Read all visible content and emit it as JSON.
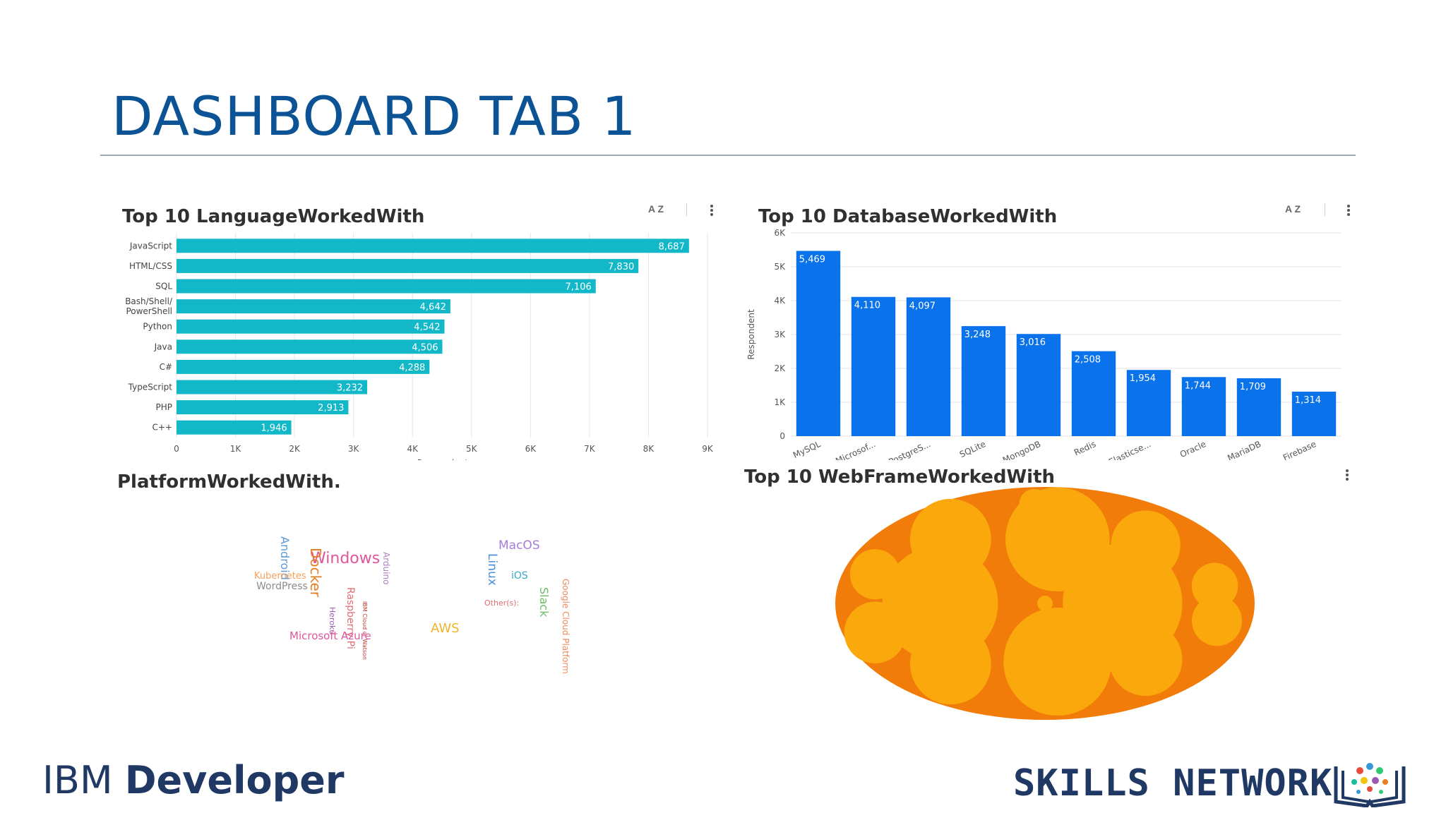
{
  "slide": {
    "title": "DASHBOARD TAB 1",
    "footer_left_thin": "IBM ",
    "footer_left_bold": "Developer",
    "footer_right": "SKILLS NETWORK"
  },
  "colors": {
    "title": "#0b5394",
    "language_bar": "#13b8c8",
    "database_bar": "#0a72ea",
    "packed_outer": "#f27c0a",
    "packed_inner": "#fba80c",
    "footer": "#1f3864"
  },
  "icons": {
    "sort": "sort-az-icon",
    "menu": "kebab-menu-icon",
    "logo": "skills-network-book-icon"
  },
  "sort_label": "A Z",
  "chart_data": [
    {
      "type": "bar",
      "orientation": "horizontal",
      "title": "Top 10 LanguageWorkedWith",
      "categories": [
        "JavaScript",
        "HTML/CSS",
        "SQL",
        "Bash/Shell/ PowerShell",
        "Python",
        "Java",
        "C#",
        "TypeScript",
        "PHP",
        "C++"
      ],
      "values": [
        8687,
        7830,
        7106,
        4642,
        4542,
        4506,
        4288,
        3232,
        2913,
        1946
      ],
      "value_labels": [
        "8,687",
        "7,830",
        "7,106",
        "4,642",
        "4,542",
        "4,506",
        "4,288",
        "3,232",
        "2,913",
        "1,946"
      ],
      "xlabel": "Respondent",
      "ylabel": "",
      "xlim": [
        0,
        9000
      ],
      "x_ticks": [
        0,
        1000,
        2000,
        3000,
        4000,
        5000,
        6000,
        7000,
        8000,
        9000
      ],
      "x_tick_labels": [
        "0",
        "1K",
        "2K",
        "3K",
        "4K",
        "5K",
        "6K",
        "7K",
        "8K",
        "9K"
      ],
      "grid": true
    },
    {
      "type": "bar",
      "orientation": "vertical",
      "title": "Top 10 DatabaseWorkedWith",
      "categories": [
        "MySQL",
        "Microsof...",
        "PostgreS...",
        "SQLite",
        "MongoDB",
        "Redis",
        "Elasticse...",
        "Oracle",
        "MariaDB",
        "Firebase"
      ],
      "values": [
        5469,
        4110,
        4097,
        3248,
        3016,
        2508,
        1954,
        1744,
        1709,
        1314
      ],
      "value_labels": [
        "5,469",
        "4,110",
        "4,097",
        "3,248",
        "3,016",
        "2,508",
        "1,954",
        "1,744",
        "1,709",
        "1,314"
      ],
      "xlabel": "",
      "ylabel": "Respondent",
      "ylim": [
        0,
        6000
      ],
      "y_ticks": [
        0,
        1000,
        2000,
        3000,
        4000,
        5000,
        6000
      ],
      "y_tick_labels": [
        "0",
        "1K",
        "2K",
        "3K",
        "4K",
        "5K",
        "6K"
      ],
      "grid": true
    },
    {
      "type": "wordcloud",
      "title": "PlatformWorkedWith.",
      "words": [
        {
          "text": "Windows",
          "color": "#e0569b",
          "rotate": 0
        },
        {
          "text": "Android",
          "color": "#5b9bd5",
          "rotate": 90
        },
        {
          "text": "Docker",
          "color": "#e67e22",
          "rotate": 90
        },
        {
          "text": "Arduino",
          "color": "#b07cc6",
          "rotate": 90
        },
        {
          "text": "Kubernetes",
          "color": "#f5a05a",
          "rotate": 0
        },
        {
          "text": "WordPress",
          "color": "#8c8c8c",
          "rotate": 0
        },
        {
          "text": "Raspberry Pi",
          "color": "#e06c75",
          "rotate": 90
        },
        {
          "text": "Heroku",
          "color": "#9b59b6",
          "rotate": 90
        },
        {
          "text": "IBM Cloud or Watson",
          "color": "#c0392b",
          "rotate": 90
        },
        {
          "text": "Microsoft Azure",
          "color": "#e0569b",
          "rotate": 0
        },
        {
          "text": "AWS",
          "color": "#f0b429",
          "rotate": 0
        },
        {
          "text": "MacOS",
          "color": "#a77cd6",
          "rotate": 0
        },
        {
          "text": "Linux",
          "color": "#4a90d9",
          "rotate": 90
        },
        {
          "text": "iOS",
          "color": "#3aa7c9",
          "rotate": 0
        },
        {
          "text": "Other(s):",
          "color": "#e06c75",
          "rotate": 0
        },
        {
          "text": "Slack",
          "color": "#6abf69",
          "rotate": 90
        },
        {
          "text": "Google Cloud Platform",
          "color": "#f08a5d",
          "rotate": 90
        }
      ]
    },
    {
      "type": "packed_bubble",
      "title": "Top 10 WebFrameWorkedWith",
      "bubble_count": 14
    }
  ]
}
